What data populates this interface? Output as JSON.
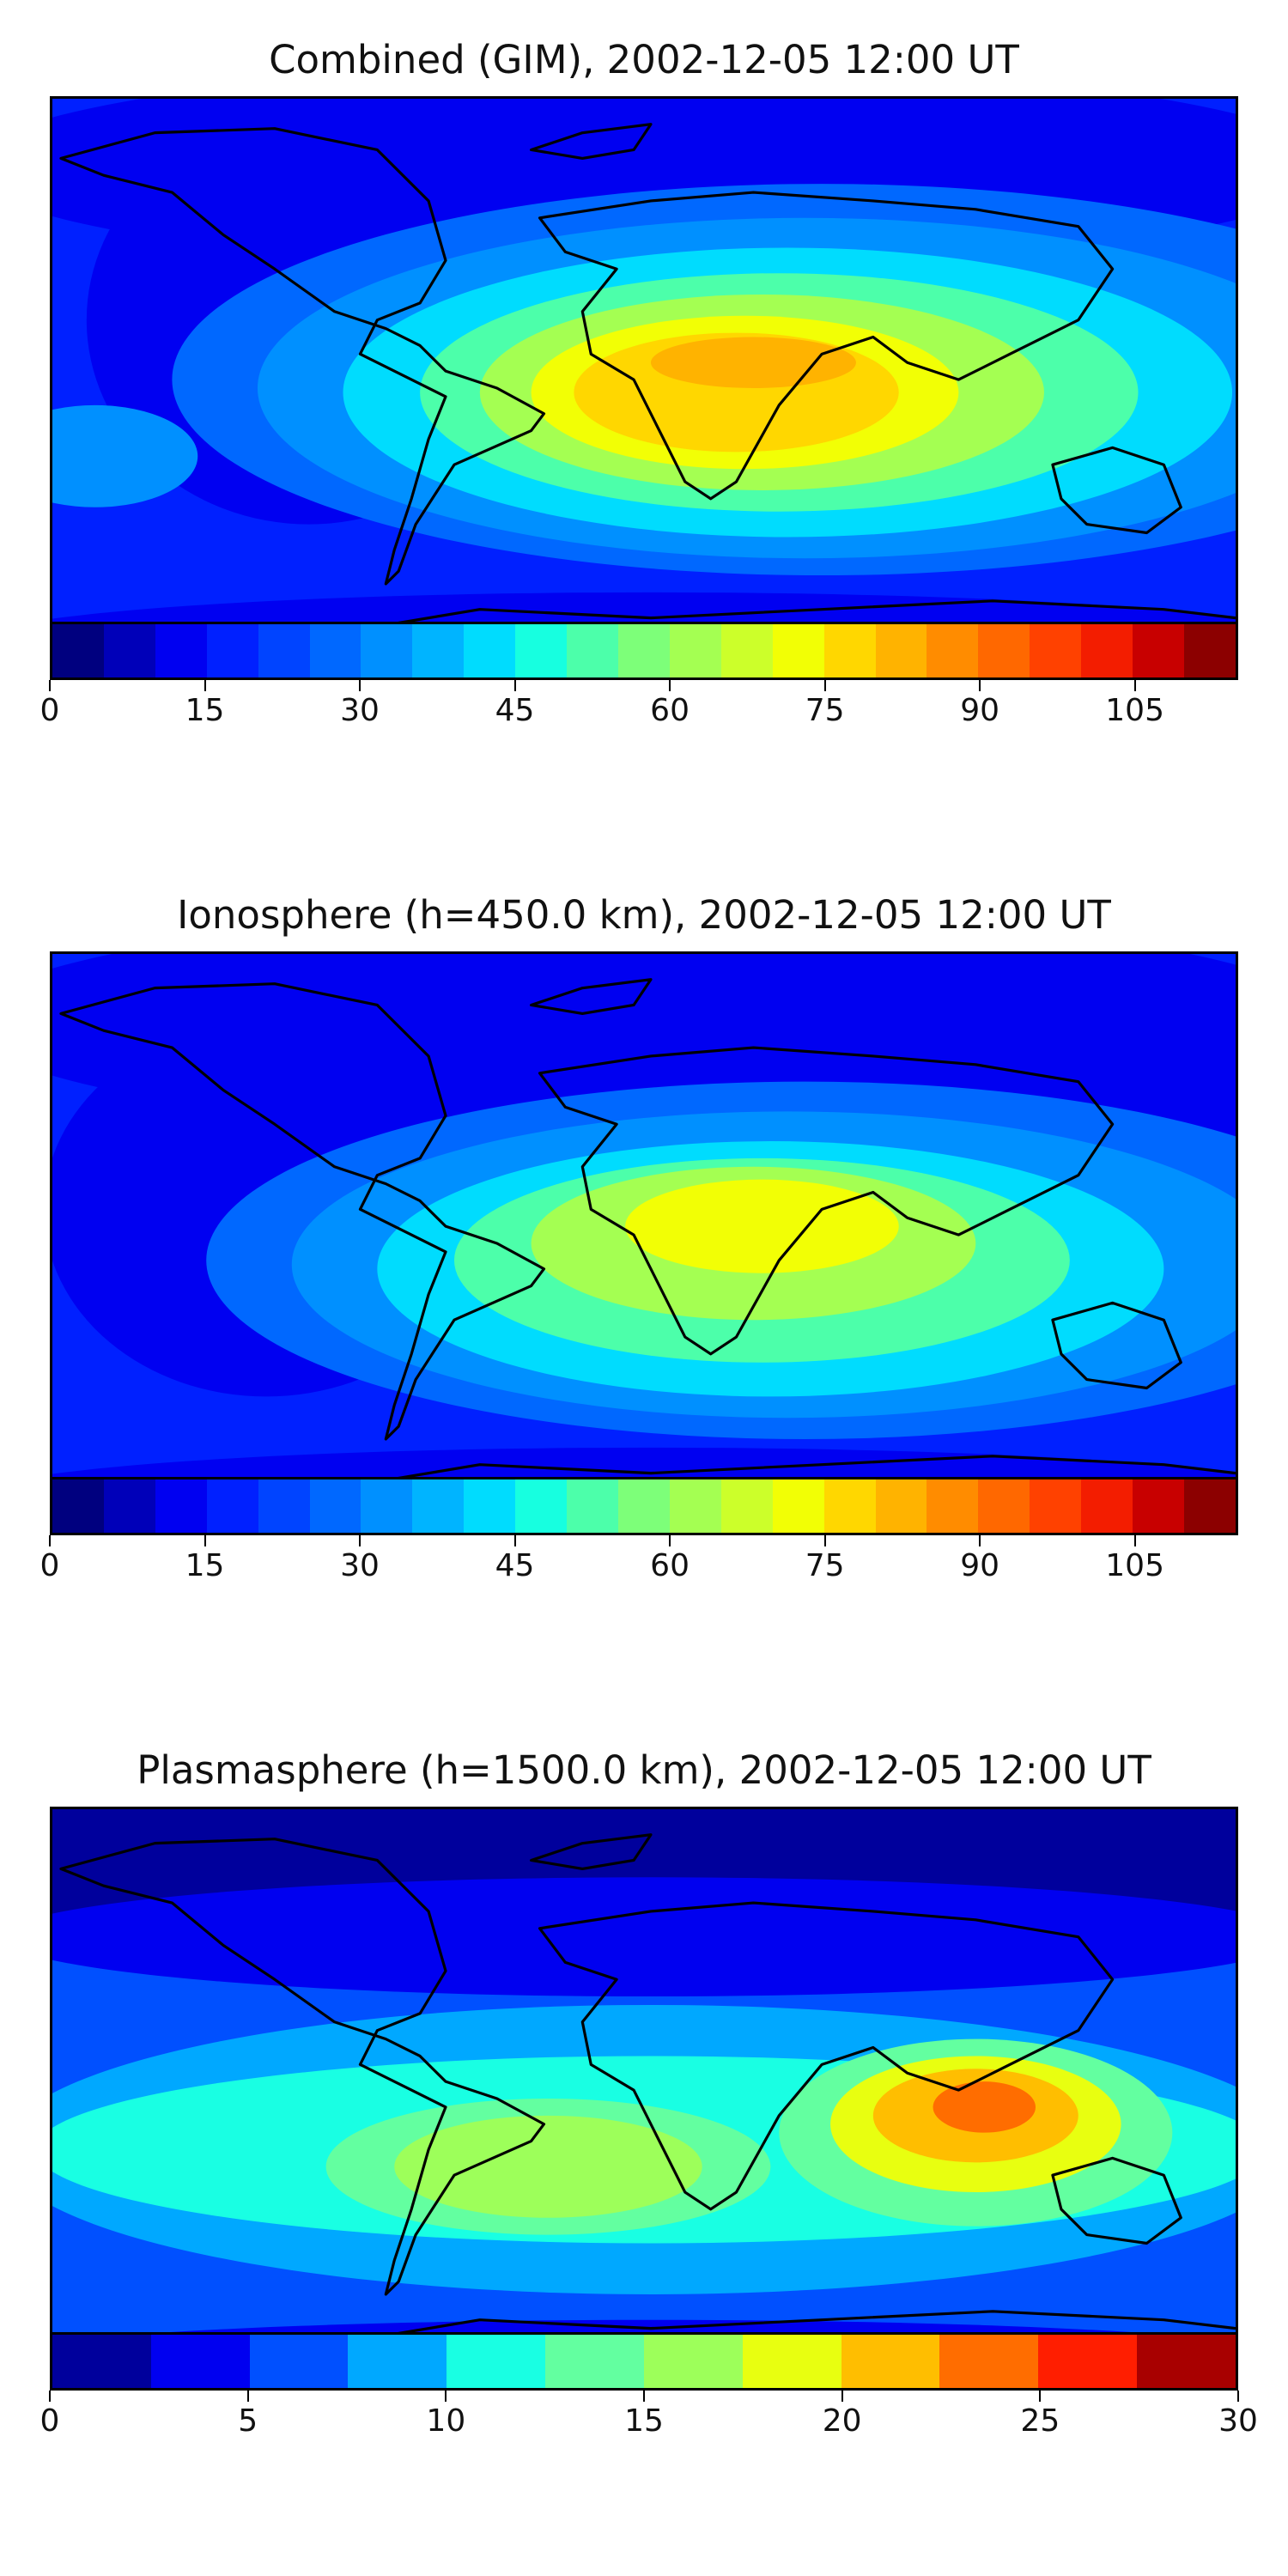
{
  "chart_data": [
    {
      "type": "heatmap",
      "title": "Combined (GIM), 2002-12-05 12:00 UT",
      "colorbar": {
        "min": 0,
        "max": 115,
        "step": 5,
        "ticks": [
          "0",
          "15",
          "30",
          "45",
          "60",
          "75",
          "90",
          "105"
        ],
        "colors": [
          "#00007f",
          "#0000b9",
          "#0000f1",
          "#0020ff",
          "#0044ff",
          "#0068ff",
          "#0090ff",
          "#00b4ff",
          "#00dcfe",
          "#17ffe0",
          "#4cffaa",
          "#7dff79",
          "#a4ff52",
          "#ccff2a",
          "#f2ff05",
          "#ffd700",
          "#ffb300",
          "#ff8c00",
          "#ff6800",
          "#ff4100",
          "#f31d00",
          "#c80000",
          "#8c0000"
        ]
      },
      "grid": false
    },
    {
      "type": "heatmap",
      "title": "Ionosphere  (h=450.0 km), 2002-12-05 12:00 UT",
      "colorbar": {
        "min": 0,
        "max": 115,
        "step": 5,
        "ticks": [
          "0",
          "15",
          "30",
          "45",
          "60",
          "75",
          "90",
          "105"
        ],
        "colors": [
          "#00007f",
          "#0000b9",
          "#0000f1",
          "#0020ff",
          "#0044ff",
          "#0068ff",
          "#0090ff",
          "#00b4ff",
          "#00dcfe",
          "#17ffe0",
          "#4cffaa",
          "#7dff79",
          "#a4ff52",
          "#ccff2a",
          "#f2ff05",
          "#ffd700",
          "#ffb300",
          "#ff8c00",
          "#ff6800",
          "#ff4100",
          "#f31d00",
          "#c80000",
          "#8c0000"
        ]
      },
      "grid": false
    },
    {
      "type": "heatmap",
      "title": "Plasmasphere (h=1500.0 km), 2002-12-05 12:00 UT",
      "colorbar": {
        "min": 0,
        "max": 30,
        "step": 2.5,
        "ticks": [
          "0",
          "5",
          "10",
          "15",
          "20",
          "25",
          "30"
        ],
        "colors": [
          "#00009c",
          "#0000f0",
          "#0050ff",
          "#00a8ff",
          "#19ffe3",
          "#63ffa0",
          "#9dff5a",
          "#e8ff10",
          "#ffbe00",
          "#ff6d00",
          "#ff1e00",
          "#a80000"
        ]
      },
      "grid": false
    }
  ]
}
